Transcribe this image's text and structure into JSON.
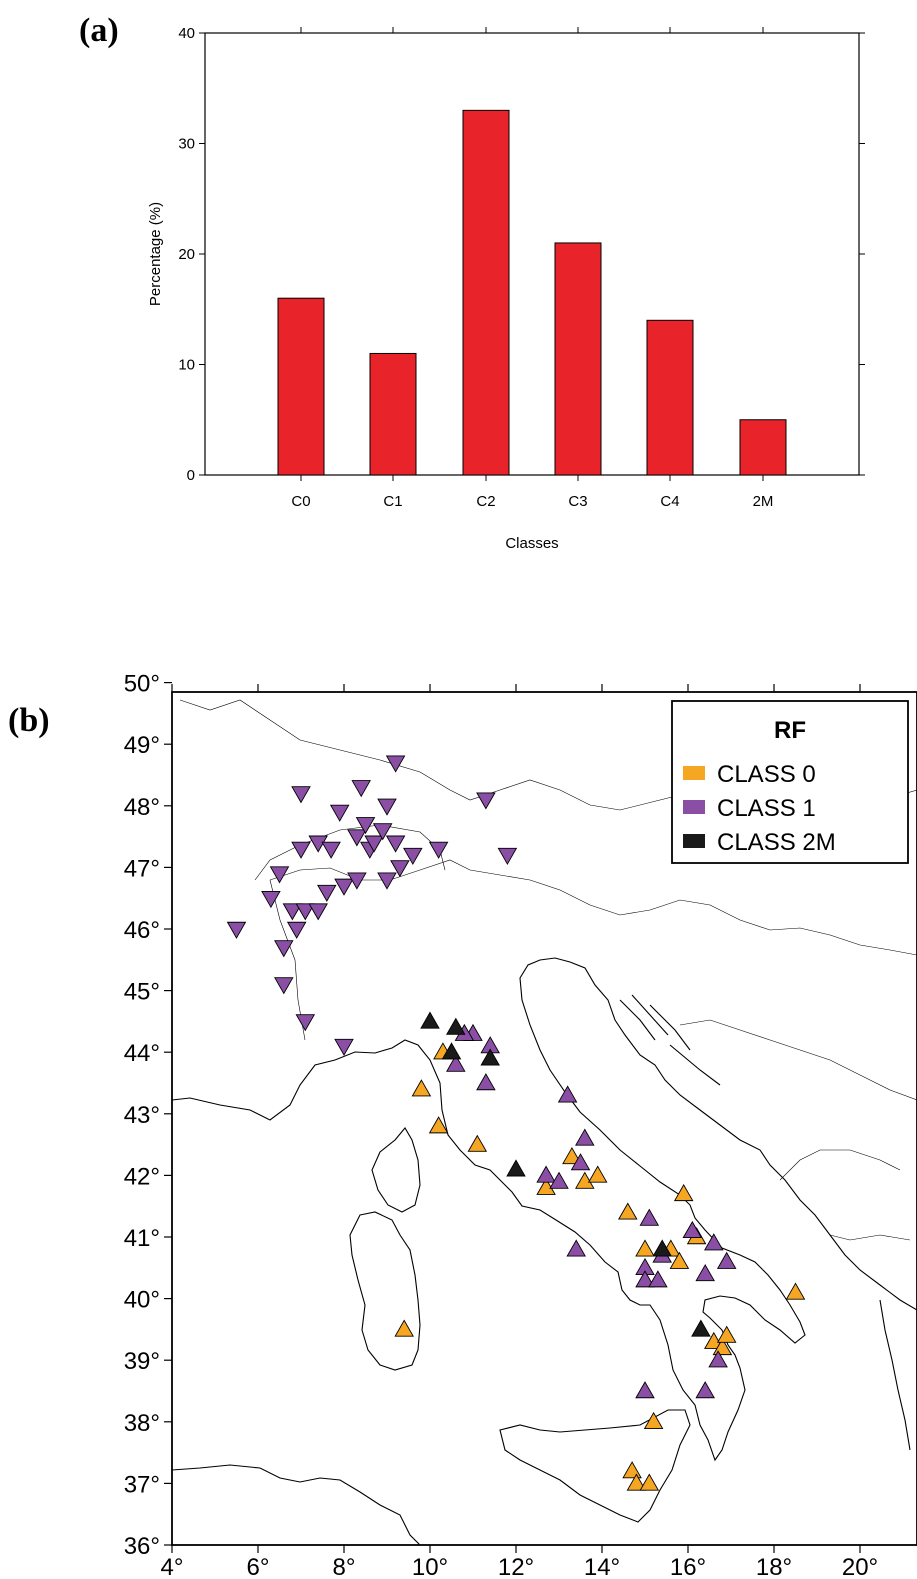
{
  "panels": {
    "a_label": "(a)",
    "b_label": "(b)"
  },
  "chart_data": [
    {
      "type": "bar",
      "categories": [
        "C0",
        "C1",
        "C2",
        "C3",
        "C4",
        "2M"
      ],
      "values": [
        16,
        11,
        33,
        21,
        14,
        5
      ],
      "xlabel": "Classes",
      "ylabel": "Percentage (%)",
      "ylim": [
        0,
        40
      ],
      "yticks": [
        0,
        10,
        20,
        30,
        40
      ],
      "bar_color": "#e8242a",
      "grid": false
    },
    {
      "type": "scatter",
      "xlim": [
        4,
        21
      ],
      "ylim": [
        36,
        50
      ],
      "xticks": [
        4,
        6,
        8,
        10,
        12,
        14,
        16,
        18,
        20
      ],
      "yticks": [
        36,
        37,
        38,
        39,
        40,
        41,
        42,
        43,
        44,
        45,
        46,
        47,
        48,
        49,
        50
      ],
      "degree_symbol": "°",
      "legend": {
        "title": "RF",
        "placement": "top-right",
        "entries": [
          "CLASS 0",
          "CLASS 1",
          "CLASS 2M"
        ]
      },
      "series": [
        {
          "name": "CLASS 0",
          "color": "#f5a623",
          "marker": "triangle-up",
          "points": [
            [
              9.8,
              43.4
            ],
            [
              10.2,
              42.8
            ],
            [
              10.3,
              44.0
            ],
            [
              11.1,
              42.5
            ],
            [
              9.4,
              39.5
            ],
            [
              12.7,
              41.8
            ],
            [
              13.3,
              42.3
            ],
            [
              13.6,
              41.9
            ],
            [
              13.9,
              42.0
            ],
            [
              14.6,
              41.4
            ],
            [
              15.0,
              40.8
            ],
            [
              15.6,
              40.8
            ],
            [
              15.8,
              40.6
            ],
            [
              15.9,
              41.7
            ],
            [
              16.2,
              41.0
            ],
            [
              16.6,
              39.3
            ],
            [
              16.8,
              39.2
            ],
            [
              16.9,
              39.4
            ],
            [
              15.2,
              38.0
            ],
            [
              14.7,
              37.2
            ],
            [
              14.8,
              37.0
            ],
            [
              15.1,
              37.0
            ],
            [
              18.5,
              40.1
            ]
          ]
        },
        {
          "name": "CLASS 1",
          "color": "#8a4fa5",
          "marker": "mixed",
          "points_down": [
            [
              5.5,
              46.0
            ],
            [
              6.5,
              46.9
            ],
            [
              6.3,
              46.5
            ],
            [
              6.8,
              46.3
            ],
            [
              7.1,
              46.3
            ],
            [
              7.4,
              46.3
            ],
            [
              7.6,
              46.6
            ],
            [
              6.9,
              46.0
            ],
            [
              6.6,
              45.7
            ],
            [
              6.6,
              45.1
            ],
            [
              7.1,
              44.5
            ],
            [
              8.0,
              44.1
            ],
            [
              7.0,
              47.3
            ],
            [
              7.4,
              47.4
            ],
            [
              7.7,
              47.3
            ],
            [
              7.9,
              47.9
            ],
            [
              8.3,
              47.5
            ],
            [
              8.6,
              47.3
            ],
            [
              8.7,
              47.4
            ],
            [
              8.9,
              47.6
            ],
            [
              9.2,
              47.4
            ],
            [
              9.3,
              47.0
            ],
            [
              9.6,
              47.2
            ],
            [
              10.2,
              47.3
            ],
            [
              8.5,
              47.7
            ],
            [
              8.4,
              48.3
            ],
            [
              9.0,
              48.0
            ],
            [
              9.2,
              48.7
            ],
            [
              7.0,
              48.2
            ],
            [
              8.0,
              46.7
            ],
            [
              8.3,
              46.8
            ],
            [
              9.0,
              46.8
            ],
            [
              11.3,
              48.1
            ],
            [
              11.8,
              47.2
            ]
          ],
          "points_up": [
            [
              11.0,
              44.3
            ],
            [
              10.8,
              44.3
            ],
            [
              11.4,
              44.1
            ],
            [
              11.3,
              43.5
            ],
            [
              13.2,
              43.3
            ],
            [
              13.6,
              42.6
            ],
            [
              13.5,
              42.2
            ],
            [
              12.7,
              42.0
            ],
            [
              13.0,
              41.9
            ],
            [
              15.1,
              41.3
            ],
            [
              15.4,
              40.7
            ],
            [
              16.1,
              41.1
            ],
            [
              16.6,
              40.9
            ],
            [
              16.9,
              40.6
            ],
            [
              16.4,
              40.4
            ],
            [
              15.0,
              40.5
            ],
            [
              15.0,
              40.3
            ],
            [
              15.3,
              40.3
            ],
            [
              13.4,
              40.8
            ],
            [
              16.7,
              39.0
            ],
            [
              15.0,
              38.5
            ],
            [
              16.4,
              38.5
            ],
            [
              10.6,
              43.8
            ]
          ]
        },
        {
          "name": "CLASS 2M",
          "color": "#1a1a1a",
          "marker": "triangle-up",
          "points": [
            [
              10.0,
              44.5
            ],
            [
              10.6,
              44.4
            ],
            [
              10.5,
              44.0
            ],
            [
              11.4,
              43.9
            ],
            [
              12.0,
              42.1
            ],
            [
              15.4,
              40.8
            ],
            [
              16.3,
              39.5
            ]
          ]
        }
      ]
    }
  ]
}
